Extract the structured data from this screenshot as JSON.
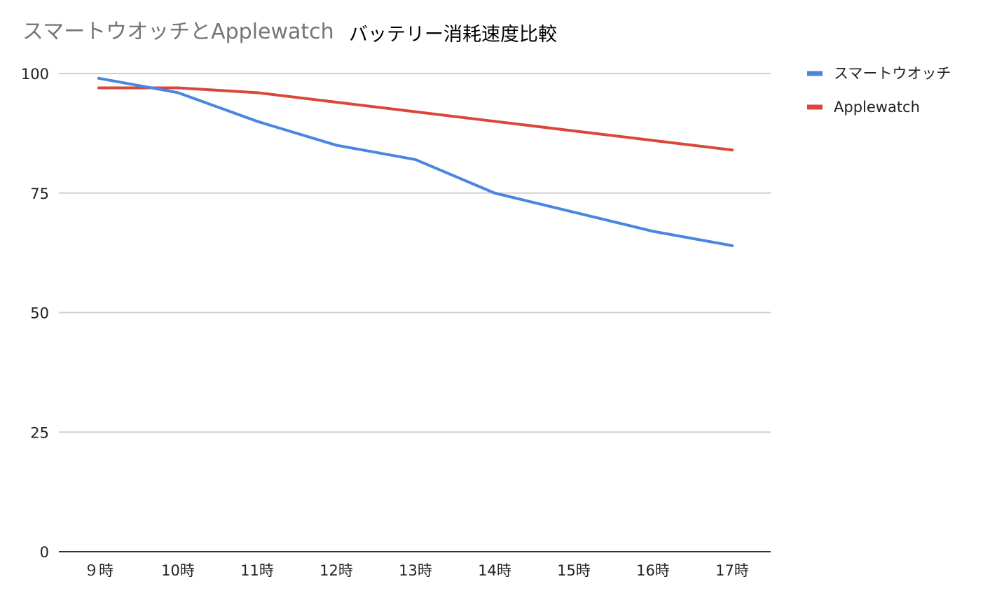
{
  "chart_data": {
    "type": "line",
    "title_part1": "スマートウオッチとApplewatch",
    "title_part2": "バッテリー消耗速度比較",
    "categories": [
      "９時",
      "10時",
      "11時",
      "12時",
      "13時",
      "14時",
      "15時",
      "16時",
      "17時"
    ],
    "series": [
      {
        "name": "スマートウオッチ",
        "color": "#4a86e0",
        "values": [
          99,
          96,
          90,
          85,
          82,
          75,
          71,
          67,
          64
        ]
      },
      {
        "name": "Applewatch",
        "color": "#d9473a",
        "values": [
          97,
          97,
          96,
          94,
          92,
          90,
          88,
          86,
          84
        ]
      }
    ],
    "ylim": [
      0,
      100
    ],
    "yticks": [
      "0",
      "25",
      "50",
      "75",
      "100"
    ],
    "grid": true,
    "legend_position": "right"
  }
}
